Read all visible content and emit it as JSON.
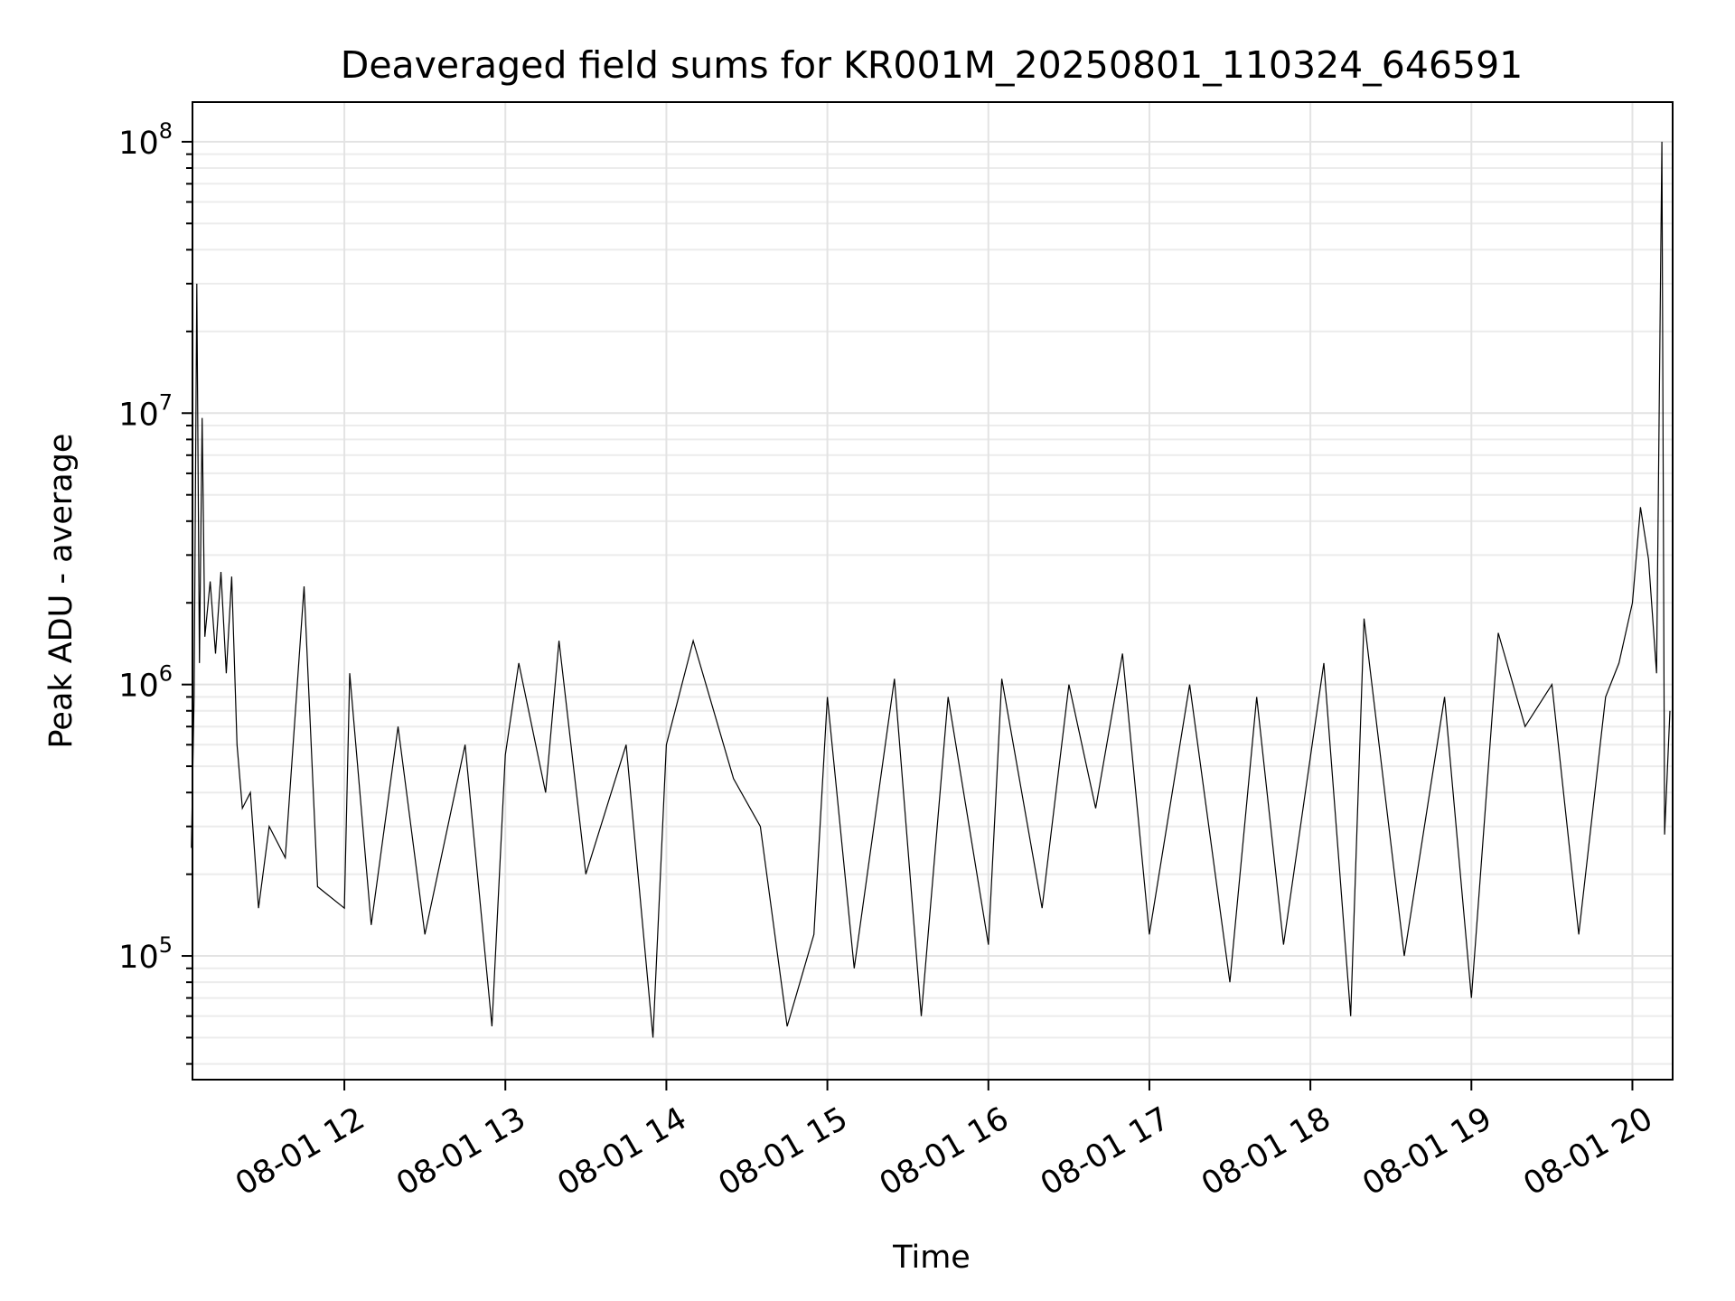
{
  "chart_data": {
    "type": "line",
    "title": "Deaveraged field sums for KR001M_20250801_110324_646591",
    "xlabel": "Time",
    "ylabel": "Peak ADU - average",
    "y_scale": "log",
    "ylim": [
      35000,
      140000000
    ],
    "xlim": [
      "2025-08-01 11:03:24",
      "2025-08-01 20:15:00"
    ],
    "grid": true,
    "legend": "none",
    "colors": {
      "line": "#000000",
      "grid": "#e3e3e3"
    },
    "x_ticks": [
      {
        "t": "2025-08-01 12:00",
        "label": "08-01 12"
      },
      {
        "t": "2025-08-01 13:00",
        "label": "08-01 13"
      },
      {
        "t": "2025-08-01 14:00",
        "label": "08-01 14"
      },
      {
        "t": "2025-08-01 15:00",
        "label": "08-01 15"
      },
      {
        "t": "2025-08-01 16:00",
        "label": "08-01 16"
      },
      {
        "t": "2025-08-01 17:00",
        "label": "08-01 17"
      },
      {
        "t": "2025-08-01 18:00",
        "label": "08-01 18"
      },
      {
        "t": "2025-08-01 19:00",
        "label": "08-01 19"
      },
      {
        "t": "2025-08-01 20:00",
        "label": "08-01 20"
      }
    ],
    "y_ticks": [
      {
        "value": 100000,
        "base": "10",
        "exp": "5"
      },
      {
        "value": 1000000,
        "base": "10",
        "exp": "6"
      },
      {
        "value": 10000000,
        "base": "10",
        "exp": "7"
      },
      {
        "value": 100000000,
        "base": "10",
        "exp": "8"
      }
    ],
    "series": [
      {
        "points": [
          [
            "2025-08-01 11:03",
            250000
          ],
          [
            "2025-08-01 11:04",
            900000
          ],
          [
            "2025-08-01 11:05",
            30000000
          ],
          [
            "2025-08-01 11:06",
            1200000
          ],
          [
            "2025-08-01 11:07",
            9600000
          ],
          [
            "2025-08-01 11:08",
            1500000
          ],
          [
            "2025-08-01 11:10",
            2400000
          ],
          [
            "2025-08-01 11:12",
            1300000
          ],
          [
            "2025-08-01 11:14",
            2600000
          ],
          [
            "2025-08-01 11:16",
            1100000
          ],
          [
            "2025-08-01 11:18",
            2500000
          ],
          [
            "2025-08-01 11:20",
            600000
          ],
          [
            "2025-08-01 11:22",
            350000
          ],
          [
            "2025-08-01 11:25",
            400000
          ],
          [
            "2025-08-01 11:28",
            150000
          ],
          [
            "2025-08-01 11:32",
            300000
          ],
          [
            "2025-08-01 11:38",
            230000
          ],
          [
            "2025-08-01 11:45",
            2300000
          ],
          [
            "2025-08-01 11:50",
            180000
          ],
          [
            "2025-08-01 12:00",
            150000
          ],
          [
            "2025-08-01 12:02",
            1100000
          ],
          [
            "2025-08-01 12:10",
            130000
          ],
          [
            "2025-08-01 12:20",
            700000
          ],
          [
            "2025-08-01 12:30",
            120000
          ],
          [
            "2025-08-01 12:45",
            600000
          ],
          [
            "2025-08-01 12:55",
            55000
          ],
          [
            "2025-08-01 13:00",
            550000
          ],
          [
            "2025-08-01 13:05",
            1200000
          ],
          [
            "2025-08-01 13:15",
            400000
          ],
          [
            "2025-08-01 13:20",
            1450000
          ],
          [
            "2025-08-01 13:30",
            200000
          ],
          [
            "2025-08-01 13:45",
            600000
          ],
          [
            "2025-08-01 13:55",
            50000
          ],
          [
            "2025-08-01 14:00",
            600000
          ],
          [
            "2025-08-01 14:10",
            1450000
          ],
          [
            "2025-08-01 14:25",
            450000
          ],
          [
            "2025-08-01 14:35",
            300000
          ],
          [
            "2025-08-01 14:45",
            55000
          ],
          [
            "2025-08-01 14:55",
            120000
          ],
          [
            "2025-08-01 15:00",
            900000
          ],
          [
            "2025-08-01 15:10",
            90000
          ],
          [
            "2025-08-01 15:25",
            1050000
          ],
          [
            "2025-08-01 15:35",
            60000
          ],
          [
            "2025-08-01 15:45",
            900000
          ],
          [
            "2025-08-01 16:00",
            110000
          ],
          [
            "2025-08-01 16:05",
            1050000
          ],
          [
            "2025-08-01 16:20",
            150000
          ],
          [
            "2025-08-01 16:30",
            1000000
          ],
          [
            "2025-08-01 16:40",
            350000
          ],
          [
            "2025-08-01 16:50",
            1300000
          ],
          [
            "2025-08-01 17:00",
            120000
          ],
          [
            "2025-08-01 17:15",
            1000000
          ],
          [
            "2025-08-01 17:30",
            80000
          ],
          [
            "2025-08-01 17:40",
            900000
          ],
          [
            "2025-08-01 17:50",
            110000
          ],
          [
            "2025-08-01 18:05",
            1200000
          ],
          [
            "2025-08-01 18:15",
            60000
          ],
          [
            "2025-08-01 18:20",
            1750000
          ],
          [
            "2025-08-01 18:35",
            100000
          ],
          [
            "2025-08-01 18:50",
            900000
          ],
          [
            "2025-08-01 19:00",
            70000
          ],
          [
            "2025-08-01 19:10",
            1550000
          ],
          [
            "2025-08-01 19:20",
            700000
          ],
          [
            "2025-08-01 19:30",
            1000000
          ],
          [
            "2025-08-01 19:40",
            120000
          ],
          [
            "2025-08-01 19:50",
            900000
          ],
          [
            "2025-08-01 19:55",
            1200000
          ],
          [
            "2025-08-01 20:00",
            2000000
          ],
          [
            "2025-08-01 20:03",
            4500000
          ],
          [
            "2025-08-01 20:06",
            2900000
          ],
          [
            "2025-08-01 20:09",
            1100000
          ],
          [
            "2025-08-01 20:11",
            100000000
          ],
          [
            "2025-08-01 20:12",
            280000
          ],
          [
            "2025-08-01 20:14",
            800000
          ]
        ]
      }
    ]
  }
}
